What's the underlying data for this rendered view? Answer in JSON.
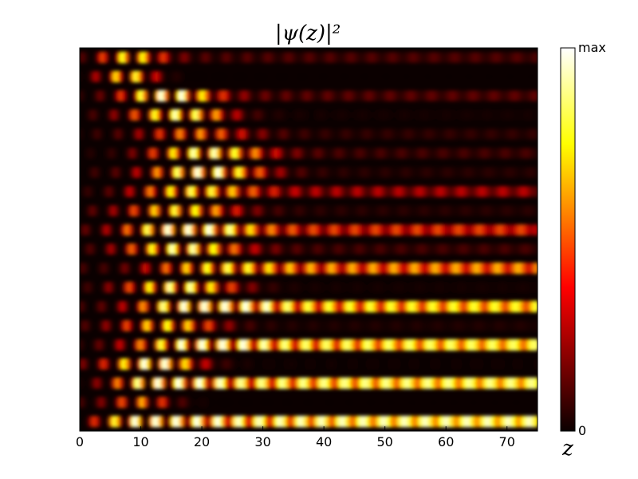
{
  "chart_data": {
    "type": "heatmap",
    "title": "|ψ(z)|²",
    "xlabel": "z",
    "ylabel": "",
    "xlim": [
      0,
      75
    ],
    "x_ticks": [
      "0",
      "10",
      "20",
      "30",
      "40",
      "50",
      "60",
      "70"
    ],
    "x_tick_values": [
      0,
      10,
      20,
      30,
      40,
      50,
      60,
      70
    ],
    "colormap": "hot",
    "colorbar": {
      "min_label": "0",
      "max_label": "max"
    },
    "n_channels": 20,
    "channels": [
      {
        "channel": 1,
        "pulse_center": 8,
        "pulse_width": 6,
        "steady_intensity": 0.22
      },
      {
        "channel": 2,
        "pulse_center": 8,
        "pulse_width": 5,
        "steady_intensity": 0.02
      },
      {
        "channel": 3,
        "pulse_center": 14,
        "pulse_width": 8,
        "steady_intensity": 0.24
      },
      {
        "channel": 4,
        "pulse_center": 16,
        "pulse_width": 9,
        "steady_intensity": 0.08
      },
      {
        "channel": 5,
        "pulse_center": 18,
        "pulse_width": 10,
        "steady_intensity": 0.16
      },
      {
        "channel": 6,
        "pulse_center": 20,
        "pulse_width": 10,
        "steady_intensity": 0.2
      },
      {
        "channel": 7,
        "pulse_center": 20,
        "pulse_width": 10,
        "steady_intensity": 0.14
      },
      {
        "channel": 8,
        "pulse_center": 17,
        "pulse_width": 10,
        "steady_intensity": 0.36
      },
      {
        "channel": 9,
        "pulse_center": 16,
        "pulse_width": 10,
        "steady_intensity": 0.14
      },
      {
        "channel": 10,
        "pulse_center": 16,
        "pulse_width": 10,
        "steady_intensity": 0.5
      },
      {
        "channel": 11,
        "pulse_center": 16,
        "pulse_width": 10,
        "steady_intensity": 0.2
      },
      {
        "channel": 12,
        "pulse_center": 18,
        "pulse_width": 10,
        "steady_intensity": 0.64
      },
      {
        "channel": 13,
        "pulse_center": 16,
        "pulse_width": 10,
        "steady_intensity": 0.08
      },
      {
        "channel": 14,
        "pulse_center": 18,
        "pulse_width": 10,
        "steady_intensity": 0.8
      },
      {
        "channel": 15,
        "pulse_center": 14,
        "pulse_width": 9,
        "steady_intensity": 0.12
      },
      {
        "channel": 16,
        "pulse_center": 16,
        "pulse_width": 10,
        "steady_intensity": 0.86
      },
      {
        "channel": 17,
        "pulse_center": 12,
        "pulse_width": 8,
        "steady_intensity": 0.06
      },
      {
        "channel": 18,
        "pulse_center": 12,
        "pulse_width": 8,
        "steady_intensity": 0.9
      },
      {
        "channel": 19,
        "pulse_center": 10,
        "pulse_width": 6,
        "steady_intensity": 0.02
      },
      {
        "channel": 20,
        "pulse_center": 10,
        "pulse_width": 8,
        "steady_intensity": 0.95
      }
    ]
  }
}
